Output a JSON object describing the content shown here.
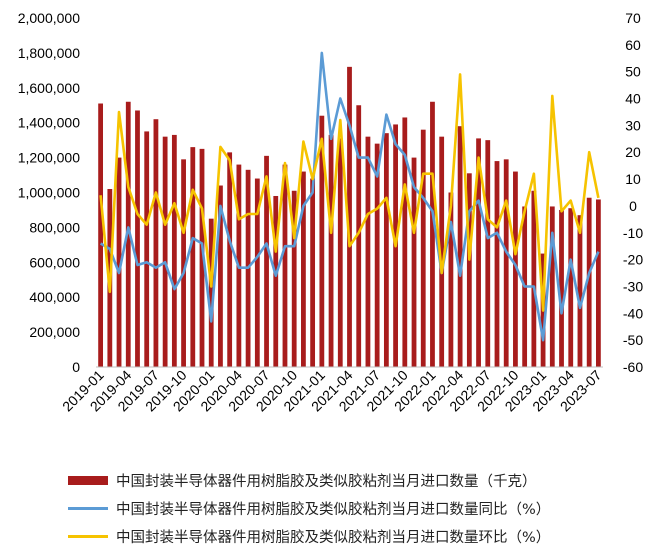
{
  "chart_data": {
    "type": "bar+line",
    "categories": [
      "2019-01",
      "2019-02",
      "2019-03",
      "2019-04",
      "2019-05",
      "2019-06",
      "2019-07",
      "2019-08",
      "2019-09",
      "2019-10",
      "2019-11",
      "2019-12",
      "2020-01",
      "2020-02",
      "2020-03",
      "2020-04",
      "2020-05",
      "2020-06",
      "2020-07",
      "2020-08",
      "2020-09",
      "2020-10",
      "2020-11",
      "2020-12",
      "2021-01",
      "2021-02",
      "2021-03",
      "2021-04",
      "2021-05",
      "2021-06",
      "2021-07",
      "2021-08",
      "2021-09",
      "2021-10",
      "2021-11",
      "2021-12",
      "2022-01",
      "2022-02",
      "2022-03",
      "2022-04",
      "2022-05",
      "2022-06",
      "2022-07",
      "2022-08",
      "2022-09",
      "2022-10",
      "2022-11",
      "2022-12",
      "2023-01",
      "2023-02",
      "2023-03",
      "2023-04",
      "2023-05",
      "2023-06",
      "2023-07"
    ],
    "x_tick_labels": [
      "2019-01",
      "2019-04",
      "2019-07",
      "2019-10",
      "2020-01",
      "2020-04",
      "2020-07",
      "2020-10",
      "2021-01",
      "2021-04",
      "2021-07",
      "2021-10",
      "2022-01",
      "2022-04",
      "2022-07",
      "2022-10",
      "2023-01",
      "2023-04",
      "2023-07"
    ],
    "left_axis": {
      "ylim": [
        0,
        2000000
      ],
      "ticks": [
        "0",
        "200,000",
        "400,000",
        "600,000",
        "800,000",
        "1,000,000",
        "1,200,000",
        "1,400,000",
        "1,600,000",
        "1,800,000",
        "2,000,000"
      ]
    },
    "right_axis": {
      "ylim": [
        -60,
        70
      ],
      "ticks": [
        "-60",
        "-50",
        "-40",
        "-30",
        "-20",
        "-10",
        "0",
        "10",
        "20",
        "30",
        "40",
        "50",
        "60",
        "70"
      ]
    },
    "grid": false,
    "legend_position": "bottom",
    "series": [
      {
        "name": "中国封装半导体器件用树脂胶及类似胶粘剂当月进口数量（千克）",
        "type": "bar",
        "axis": "left",
        "color": "#a81c1c",
        "values": [
          1510000,
          1020000,
          1200000,
          1520000,
          1470000,
          1350000,
          1420000,
          1320000,
          1330000,
          1190000,
          1260000,
          1250000,
          850000,
          1040000,
          1230000,
          1160000,
          1130000,
          1080000,
          1210000,
          980000,
          1160000,
          1010000,
          1120000,
          1080000,
          1440000,
          1330000,
          1310000,
          1720000,
          1500000,
          1320000,
          1280000,
          1340000,
          1390000,
          1430000,
          1200000,
          1360000,
          1520000,
          1320000,
          1000000,
          1380000,
          1110000,
          1310000,
          1300000,
          1180000,
          1190000,
          1120000,
          920000,
          1010000,
          650000,
          920000,
          900000,
          910000,
          870000,
          970000,
          960000
        ]
      },
      {
        "name": "中国封装半导体器件用树脂胶及类似胶粘剂当月进口数量同比（%）",
        "type": "line",
        "axis": "right",
        "color": "#5b9bd5",
        "values": [
          -14,
          -16,
          -25,
          -8,
          -22,
          -21,
          -23,
          -21,
          -31,
          -25,
          -12,
          -14,
          -43,
          0,
          -13,
          -23,
          -23,
          -19,
          -14,
          -26,
          -15,
          -15,
          0,
          5,
          57,
          25,
          40,
          30,
          18,
          18,
          11,
          34,
          23,
          19,
          7,
          3,
          -2,
          -25,
          -6,
          -26,
          -2,
          2,
          -12,
          -10,
          -17,
          -22,
          -30,
          -30,
          -50,
          -10,
          -40,
          -20,
          -38,
          -25,
          -17
        ]
      },
      {
        "name": "中国封装半导体器件用树脂胶及类似胶粘剂当月进口数量环比（%）",
        "type": "line",
        "axis": "right",
        "color": "#f6c300",
        "values": [
          4,
          -32,
          35,
          7,
          -3,
          -7,
          5,
          -7,
          1,
          -10,
          6,
          -1,
          -30,
          22,
          17,
          -5,
          -3,
          -3,
          11,
          -17,
          16,
          -12,
          24,
          10,
          25,
          -10,
          32,
          -15,
          -10,
          -3,
          -1,
          3,
          -15,
          8,
          -10,
          12,
          12,
          -25,
          0,
          49,
          -20,
          18,
          -5,
          -8,
          2,
          -18,
          -2,
          12,
          -39,
          41,
          -2,
          2,
          -10,
          20,
          3
        ]
      }
    ]
  }
}
